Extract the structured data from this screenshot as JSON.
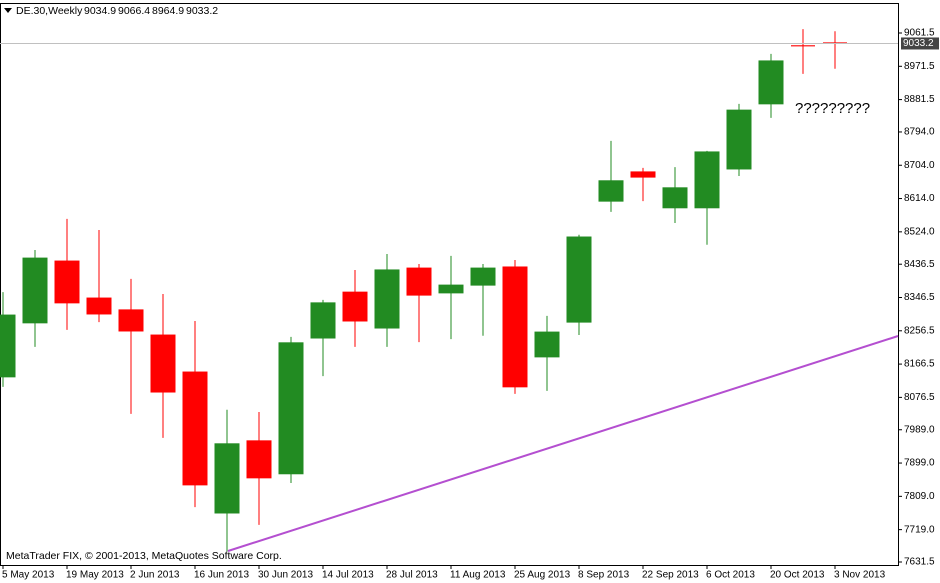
{
  "chart_data": {
    "type": "candlestick",
    "title": "DE.30,Weekly",
    "annotation": "?????????",
    "watermark": "MetaTrader FIX, © 2001-2013, MetaQuotes Software Corp.",
    "categories": [
      "5 May 2013",
      null,
      "19 May 2013",
      null,
      "2 Jun 2013",
      null,
      "16 Jun 2013",
      null,
      "30 Jun 2013",
      null,
      "14 Jul 2013",
      null,
      "28 Jul 2013",
      null,
      "11 Aug 2013",
      null,
      "25 Aug 2013",
      null,
      "8 Sep 2013",
      null,
      "22 Sep 2013",
      null,
      "6 Oct 2013",
      null,
      "20 Oct 2013",
      null,
      "3 Nov 2013"
    ],
    "open": [
      8132,
      8278,
      8445,
      8345,
      8313,
      8245,
      8145,
      7764,
      7959,
      7870,
      8237,
      8361,
      8264,
      8426,
      8359,
      8380,
      8429,
      8186,
      8280,
      8607,
      8686,
      8589,
      8589,
      8694,
      8870,
      9027,
      9034.9
    ],
    "high": [
      8361,
      8475,
      8559,
      8529,
      8397,
      8356,
      8283,
      8043,
      8037,
      8240,
      8340,
      8421,
      8464,
      8437,
      8459,
      8437,
      8448,
      8297,
      8516,
      8770,
      8697,
      8699,
      8743,
      8870,
      9005,
      9072,
      9066.4
    ],
    "low": [
      8105,
      8213,
      8259,
      8280,
      8032,
      7967,
      7780,
      7661,
      7732,
      7845,
      8134,
      8213,
      8213,
      8226,
      8234,
      8243,
      8086,
      8094,
      8245,
      8578,
      8607,
      8548,
      8489,
      8675,
      8832,
      8951,
      8964.9
    ],
    "close": [
      8299,
      8453,
      8332,
      8302,
      8256,
      8091,
      7840,
      7951,
      7859,
      8224,
      8332,
      8283,
      8421,
      8353,
      8380,
      8426,
      8105,
      8253,
      8510,
      8662,
      8672,
      8643,
      8740,
      8853,
      8986,
      9024,
      9033.2
    ],
    "up_color": "#228b22",
    "down_color": "#ff0000",
    "ylim": [
      7623.4,
      9142.6
    ],
    "yticks": [
      9061.5,
      8971.5,
      8881.5,
      {
        "value": 8794,
        "label": "8794.0"
      },
      {
        "value": 8704,
        "label": "8704.0"
      },
      {
        "value": 8614,
        "label": "8614.0"
      },
      {
        "value": 8524,
        "label": "8524.0"
      },
      8436.5,
      8346.5,
      8256.5,
      8166.5,
      8076.5,
      {
        "value": 7989,
        "label": "7989.0"
      },
      {
        "value": 7899,
        "label": "7899.0"
      },
      {
        "value": 7809,
        "label": "7809.0"
      },
      {
        "value": 7719,
        "label": "7719.0"
      },
      7631.5
    ]
  }
}
